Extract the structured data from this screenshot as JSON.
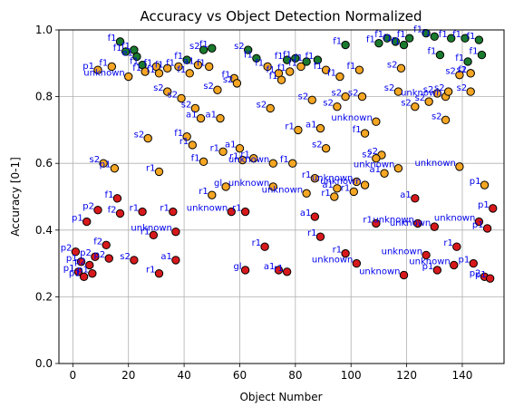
{
  "chart_data": {
    "type": "scatter",
    "title": "Accuracy vs Object Detection Normalized",
    "xlabel": "Object Number",
    "ylabel": "Accuracy [0-1]",
    "xlim": [
      -5,
      155
    ],
    "ylim": [
      0,
      1.0
    ],
    "xticks": [
      0,
      20,
      40,
      60,
      80,
      100,
      120,
      140
    ],
    "yticks": [
      0.0,
      0.2,
      0.4,
      0.6,
      0.8,
      1.0
    ],
    "ytick_labels": [
      "0.0",
      "0.2",
      "0.4",
      "0.6",
      "0.8",
      "1.0"
    ],
    "grid": true,
    "colors": {
      "red": "#d7191c",
      "orange": "#f5a623",
      "green": "#1a7a2e",
      "label": "#0000ee",
      "grid": "#b0b0b0"
    },
    "points": [
      {
        "x": 17,
        "y": 0.965,
        "c": "green",
        "label": "f1"
      },
      {
        "x": 19,
        "y": 0.935,
        "c": "green",
        "label": "f1"
      },
      {
        "x": 22,
        "y": 0.94,
        "c": "green",
        "label": "f1"
      },
      {
        "x": 23,
        "y": 0.92,
        "c": "green",
        "label": "e1"
      },
      {
        "x": 25,
        "y": 0.895,
        "c": "green",
        "label": "f1"
      },
      {
        "x": 41,
        "y": 0.91,
        "c": "green",
        "label": "f1"
      },
      {
        "x": 47,
        "y": 0.94,
        "c": "green",
        "label": "s2"
      },
      {
        "x": 50,
        "y": 0.945,
        "c": "green",
        "label": "f1"
      },
      {
        "x": 63,
        "y": 0.94,
        "c": "green",
        "label": "s2"
      },
      {
        "x": 66,
        "y": 0.915,
        "c": "green",
        "label": "f1"
      },
      {
        "x": 77,
        "y": 0.91,
        "c": "green",
        "label": "f1"
      },
      {
        "x": 80,
        "y": 0.915,
        "c": "green",
        "label": "f1"
      },
      {
        "x": 84,
        "y": 0.905,
        "c": "green",
        "label": "f1"
      },
      {
        "x": 88,
        "y": 0.91,
        "c": "green",
        "label": "f1"
      },
      {
        "x": 98,
        "y": 0.955,
        "c": "green",
        "label": "f1"
      },
      {
        "x": 110,
        "y": 0.96,
        "c": "green",
        "label": "f1"
      },
      {
        "x": 113,
        "y": 0.975,
        "c": "green",
        "label": "f1"
      },
      {
        "x": 116,
        "y": 0.965,
        "c": "green",
        "label": "f1"
      },
      {
        "x": 119,
        "y": 0.955,
        "c": "green",
        "label": "f1"
      },
      {
        "x": 121,
        "y": 0.975,
        "c": "green",
        "label": "f1"
      },
      {
        "x": 127,
        "y": 0.99,
        "c": "green",
        "label": "f1"
      },
      {
        "x": 130,
        "y": 0.98,
        "c": "green",
        "label": "f1"
      },
      {
        "x": 132,
        "y": 0.925,
        "c": "green",
        "label": "f1"
      },
      {
        "x": 136,
        "y": 0.975,
        "c": "green",
        "label": "f1"
      },
      {
        "x": 141,
        "y": 0.975,
        "c": "green",
        "label": "f1"
      },
      {
        "x": 142,
        "y": 0.905,
        "c": "green",
        "label": "f1"
      },
      {
        "x": 146,
        "y": 0.97,
        "c": "green",
        "label": "f1"
      },
      {
        "x": 147,
        "y": 0.925,
        "c": "green",
        "label": "f1"
      },
      {
        "x": 9,
        "y": 0.88,
        "c": "orange",
        "label": "p1"
      },
      {
        "x": 14,
        "y": 0.89,
        "c": "orange",
        "label": "f1"
      },
      {
        "x": 20,
        "y": 0.86,
        "c": "orange",
        "label": "unknown"
      },
      {
        "x": 26,
        "y": 0.875,
        "c": "orange",
        "label": "f1"
      },
      {
        "x": 30,
        "y": 0.89,
        "c": "orange",
        "label": "f1"
      },
      {
        "x": 31,
        "y": 0.87,
        "c": "orange",
        "label": "f1"
      },
      {
        "x": 34,
        "y": 0.885,
        "c": "orange",
        "label": "f1"
      },
      {
        "x": 38,
        "y": 0.89,
        "c": "orange",
        "label": "f1"
      },
      {
        "x": 42,
        "y": 0.87,
        "c": "orange",
        "label": "f1"
      },
      {
        "x": 45,
        "y": 0.895,
        "c": "orange",
        "label": "a1"
      },
      {
        "x": 49,
        "y": 0.89,
        "c": "orange",
        "label": "f1"
      },
      {
        "x": 58,
        "y": 0.855,
        "c": "orange",
        "label": "f1"
      },
      {
        "x": 59,
        "y": 0.84,
        "c": "orange",
        "label": "s2"
      },
      {
        "x": 70,
        "y": 0.89,
        "c": "orange",
        "label": "f1"
      },
      {
        "x": 74,
        "y": 0.87,
        "c": "orange",
        "label": "f1"
      },
      {
        "x": 75,
        "y": 0.85,
        "c": "orange",
        "label": "f1"
      },
      {
        "x": 78,
        "y": 0.875,
        "c": "orange",
        "label": "f1"
      },
      {
        "x": 82,
        "y": 0.89,
        "c": "orange",
        "label": "f1"
      },
      {
        "x": 91,
        "y": 0.88,
        "c": "orange",
        "label": "f1"
      },
      {
        "x": 96,
        "y": 0.86,
        "c": "orange",
        "label": "f1"
      },
      {
        "x": 103,
        "y": 0.88,
        "c": "orange",
        "label": "f1"
      },
      {
        "x": 118,
        "y": 0.885,
        "c": "orange",
        "label": "s2"
      },
      {
        "x": 139,
        "y": 0.865,
        "c": "orange",
        "label": "s2"
      },
      {
        "x": 143,
        "y": 0.87,
        "c": "orange",
        "label": "f1"
      },
      {
        "x": 143,
        "y": 0.87,
        "c": "orange",
        "label": "s2"
      },
      {
        "x": 34,
        "y": 0.815,
        "c": "orange",
        "label": "s2"
      },
      {
        "x": 39,
        "y": 0.795,
        "c": "orange",
        "label": "s2"
      },
      {
        "x": 52,
        "y": 0.82,
        "c": "orange",
        "label": "s2"
      },
      {
        "x": 44,
        "y": 0.765,
        "c": "orange",
        "label": "s2"
      },
      {
        "x": 46,
        "y": 0.735,
        "c": "orange",
        "label": "a1"
      },
      {
        "x": 53,
        "y": 0.735,
        "c": "orange",
        "label": "a1"
      },
      {
        "x": 71,
        "y": 0.765,
        "c": "orange",
        "label": "s2"
      },
      {
        "x": 86,
        "y": 0.79,
        "c": "orange",
        "label": "s2"
      },
      {
        "x": 95,
        "y": 0.77,
        "c": "orange",
        "label": "s2"
      },
      {
        "x": 98,
        "y": 0.8,
        "c": "orange",
        "label": "s2"
      },
      {
        "x": 104,
        "y": 0.8,
        "c": "orange",
        "label": "s2"
      },
      {
        "x": 117,
        "y": 0.815,
        "c": "orange",
        "label": "s2"
      },
      {
        "x": 123,
        "y": 0.77,
        "c": "orange",
        "label": "s2"
      },
      {
        "x": 128,
        "y": 0.785,
        "c": "orange",
        "label": "s2"
      },
      {
        "x": 131,
        "y": 0.81,
        "c": "orange",
        "label": "s2"
      },
      {
        "x": 134,
        "y": 0.8,
        "c": "orange",
        "label": "unknown"
      },
      {
        "x": 135,
        "y": 0.815,
        "c": "orange",
        "label": "s2"
      },
      {
        "x": 143,
        "y": 0.815,
        "c": "orange",
        "label": "s2"
      },
      {
        "x": 134,
        "y": 0.73,
        "c": "orange",
        "label": "s2"
      },
      {
        "x": 81,
        "y": 0.7,
        "c": "orange",
        "label": "r1"
      },
      {
        "x": 89,
        "y": 0.705,
        "c": "orange",
        "label": "a1"
      },
      {
        "x": 109,
        "y": 0.725,
        "c": "orange",
        "label": "unknown"
      },
      {
        "x": 105,
        "y": 0.69,
        "c": "orange",
        "label": "f1"
      },
      {
        "x": 27,
        "y": 0.675,
        "c": "orange",
        "label": "s2"
      },
      {
        "x": 41,
        "y": 0.68,
        "c": "orange",
        "label": "f1"
      },
      {
        "x": 43,
        "y": 0.655,
        "c": "orange",
        "label": "r1"
      },
      {
        "x": 60,
        "y": 0.645,
        "c": "orange",
        "label": "a1"
      },
      {
        "x": 54,
        "y": 0.635,
        "c": "orange",
        "label": "r1"
      },
      {
        "x": 91,
        "y": 0.645,
        "c": "orange",
        "label": "s2"
      },
      {
        "x": 111,
        "y": 0.625,
        "c": "orange",
        "label": "s2"
      },
      {
        "x": 109,
        "y": 0.615,
        "c": "orange",
        "label": "s2"
      },
      {
        "x": 47,
        "y": 0.605,
        "c": "orange",
        "label": "f1"
      },
      {
        "x": 61,
        "y": 0.61,
        "c": "orange",
        "label": "r1"
      },
      {
        "x": 65,
        "y": 0.615,
        "c": "orange",
        "label": "r1"
      },
      {
        "x": 72,
        "y": 0.6,
        "c": "orange",
        "label": "unknown"
      },
      {
        "x": 79,
        "y": 0.6,
        "c": "orange",
        "label": "f1"
      },
      {
        "x": 11,
        "y": 0.6,
        "c": "orange",
        "label": "s2"
      },
      {
        "x": 15,
        "y": 0.585,
        "c": "orange",
        "label": "p1"
      },
      {
        "x": 31,
        "y": 0.575,
        "c": "orange",
        "label": "r1"
      },
      {
        "x": 112,
        "y": 0.57,
        "c": "orange",
        "label": "a1"
      },
      {
        "x": 117,
        "y": 0.585,
        "c": "orange",
        "label": "unknown"
      },
      {
        "x": 139,
        "y": 0.59,
        "c": "orange",
        "label": "unknown"
      },
      {
        "x": 87,
        "y": 0.555,
        "c": "orange",
        "label": "r1"
      },
      {
        "x": 102,
        "y": 0.545,
        "c": "orange",
        "label": "unknown"
      },
      {
        "x": 105,
        "y": 0.535,
        "c": "orange",
        "label": "unknown"
      },
      {
        "x": 148,
        "y": 0.535,
        "c": "orange",
        "label": "p1"
      },
      {
        "x": 55,
        "y": 0.53,
        "c": "orange",
        "label": "gl"
      },
      {
        "x": 72,
        "y": 0.53,
        "c": "orange",
        "label": "unknown"
      },
      {
        "x": 84,
        "y": 0.51,
        "c": "orange",
        "label": "unknown"
      },
      {
        "x": 95,
        "y": 0.525,
        "c": "orange",
        "label": "a1"
      },
      {
        "x": 94,
        "y": 0.5,
        "c": "orange",
        "label": "r1"
      },
      {
        "x": 101,
        "y": 0.515,
        "c": "orange",
        "label": "r1"
      },
      {
        "x": 50,
        "y": 0.505,
        "c": "orange",
        "label": "r1"
      },
      {
        "x": 16,
        "y": 0.495,
        "c": "red",
        "label": "f1"
      },
      {
        "x": 123,
        "y": 0.495,
        "c": "red",
        "label": "a1"
      },
      {
        "x": 9,
        "y": 0.46,
        "c": "red",
        "label": "p2"
      },
      {
        "x": 17,
        "y": 0.45,
        "c": "red",
        "label": "f2"
      },
      {
        "x": 25,
        "y": 0.455,
        "c": "red",
        "label": "r1"
      },
      {
        "x": 36,
        "y": 0.455,
        "c": "red",
        "label": "r1"
      },
      {
        "x": 57,
        "y": 0.455,
        "c": "red",
        "label": "unknown"
      },
      {
        "x": 62,
        "y": 0.455,
        "c": "red",
        "label": "r1"
      },
      {
        "x": 151,
        "y": 0.465,
        "c": "red",
        "label": "p1"
      },
      {
        "x": 5,
        "y": 0.425,
        "c": "red",
        "label": "p1"
      },
      {
        "x": 87,
        "y": 0.44,
        "c": "red",
        "label": "a1"
      },
      {
        "x": 109,
        "y": 0.42,
        "c": "red",
        "label": "r1"
      },
      {
        "x": 124,
        "y": 0.42,
        "c": "red",
        "label": "unknown"
      },
      {
        "x": 130,
        "y": 0.41,
        "c": "red",
        "label": "unknown"
      },
      {
        "x": 146,
        "y": 0.425,
        "c": "red",
        "label": "unknown"
      },
      {
        "x": 149,
        "y": 0.405,
        "c": "red",
        "label": "p1"
      },
      {
        "x": 37,
        "y": 0.395,
        "c": "red",
        "label": "unknown"
      },
      {
        "x": 29,
        "y": 0.385,
        "c": "red",
        "label": "r1"
      },
      {
        "x": 89,
        "y": 0.38,
        "c": "red",
        "label": "r1"
      },
      {
        "x": 12,
        "y": 0.355,
        "c": "red",
        "label": "f2"
      },
      {
        "x": 69,
        "y": 0.35,
        "c": "red",
        "label": "r1"
      },
      {
        "x": 138,
        "y": 0.35,
        "c": "red",
        "label": "r1"
      },
      {
        "x": 1,
        "y": 0.335,
        "c": "red",
        "label": "p2"
      },
      {
        "x": 98,
        "y": 0.33,
        "c": "red",
        "label": "r1"
      },
      {
        "x": 127,
        "y": 0.325,
        "c": "red",
        "label": "unknown"
      },
      {
        "x": 8,
        "y": 0.32,
        "c": "red",
        "label": "p2"
      },
      {
        "x": 13,
        "y": 0.315,
        "c": "red",
        "label": "p2"
      },
      {
        "x": 22,
        "y": 0.31,
        "c": "red",
        "label": "s2"
      },
      {
        "x": 37,
        "y": 0.31,
        "c": "red",
        "label": "a1"
      },
      {
        "x": 3,
        "y": 0.305,
        "c": "red",
        "label": "p1"
      },
      {
        "x": 102,
        "y": 0.3,
        "c": "red",
        "label": "unknown"
      },
      {
        "x": 137,
        "y": 0.295,
        "c": "red",
        "label": "unknown"
      },
      {
        "x": 144,
        "y": 0.3,
        "c": "red",
        "label": "p1"
      },
      {
        "x": 6,
        "y": 0.295,
        "c": "red",
        "label": "p2"
      },
      {
        "x": 2,
        "y": 0.275,
        "c": "red",
        "label": "p1"
      },
      {
        "x": 7,
        "y": 0.27,
        "c": "red",
        "label": "p1"
      },
      {
        "x": 4,
        "y": 0.26,
        "c": "red",
        "label": "p1"
      },
      {
        "x": 31,
        "y": 0.27,
        "c": "red",
        "label": "r1"
      },
      {
        "x": 62,
        "y": 0.28,
        "c": "red",
        "label": "gl"
      },
      {
        "x": 74,
        "y": 0.28,
        "c": "red",
        "label": "a1"
      },
      {
        "x": 77,
        "y": 0.275,
        "c": "red",
        "label": "r1"
      },
      {
        "x": 119,
        "y": 0.265,
        "c": "red",
        "label": "unknown"
      },
      {
        "x": 131,
        "y": 0.28,
        "c": "red",
        "label": "p1"
      },
      {
        "x": 148,
        "y": 0.26,
        "c": "red",
        "label": "p2"
      },
      {
        "x": 150,
        "y": 0.255,
        "c": "red",
        "label": "p1"
      }
    ]
  }
}
